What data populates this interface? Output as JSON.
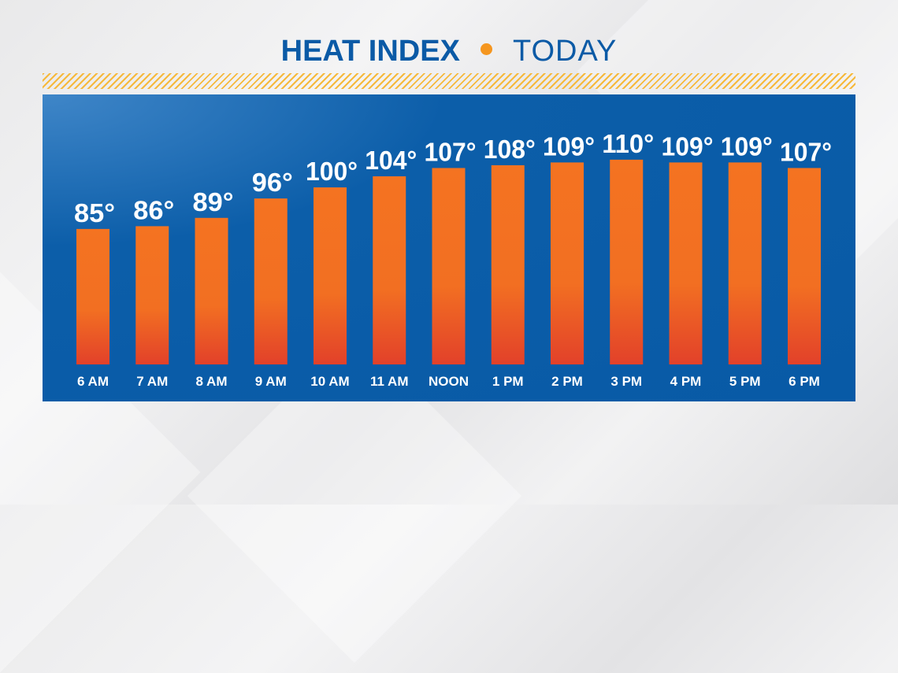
{
  "title": {
    "main": "HEAT INDEX",
    "sub": "TODAY"
  },
  "colors": {
    "title": "#0b5aa6",
    "accent_dot": "#f5961f",
    "panel": "#085aa6",
    "bar_top": "#f47321",
    "bar_bottom": "#e2412a",
    "labels": "#ffffff"
  },
  "chart_data": {
    "type": "bar",
    "title": "HEAT INDEX • TODAY",
    "categories": [
      "6 AM",
      "7 AM",
      "8 AM",
      "9 AM",
      "10 AM",
      "11 AM",
      "NOON",
      "1 PM",
      "2 PM",
      "3 PM",
      "4 PM",
      "5 PM",
      "6 PM"
    ],
    "values": [
      85,
      86,
      89,
      96,
      100,
      104,
      107,
      108,
      109,
      110,
      109,
      109,
      107
    ],
    "value_labels": [
      "85°",
      "86°",
      "89°",
      "96°",
      "100°",
      "104°",
      "107°",
      "108°",
      "109°",
      "110°",
      "109°",
      "109°",
      "107°"
    ],
    "unit": "°",
    "grid": false,
    "legend": "none"
  }
}
